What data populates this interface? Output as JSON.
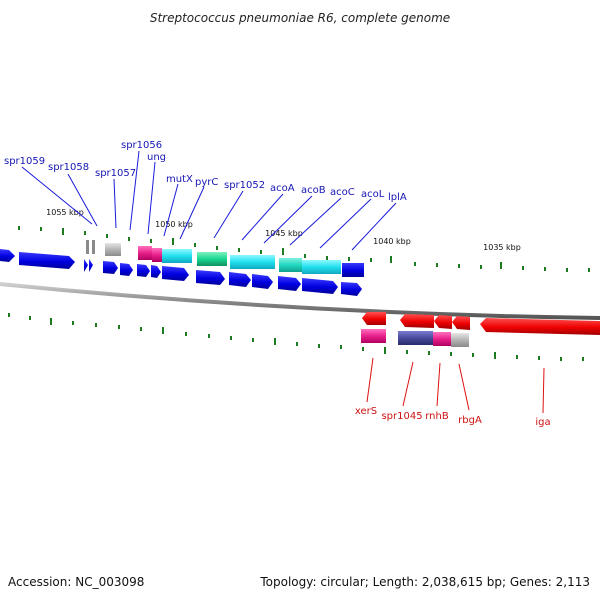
{
  "title": "Streptococcus pneumoniae R6, complete genome",
  "footer": {
    "accession": "Accession: NC_003098",
    "summary": "Topology: circular; Length: 2,038,615 bp; Genes: 2,113"
  },
  "colors": {
    "forward_gene": "#1212e6",
    "reverse_gene": "#e81010",
    "backbone": "#8a8a8a",
    "tick": "#1e7a1e",
    "pseudo": "#9a9a9a",
    "magenta": "#e8208a",
    "cyan": "#20e0ee",
    "teal": "#20d8c0",
    "green": "#18d890",
    "indigo": "#4a4a9c"
  },
  "ruler_labels": [
    "1055 kbp",
    "1050 kbp",
    "1045 kbp",
    "1040 kbp",
    "1035 kbp"
  ],
  "forward_labels": [
    "spr1059",
    "spr1058",
    "spr1057",
    "spr1056",
    "ung",
    "mutX",
    "pyrC",
    "spr1052",
    "acoA",
    "acoB",
    "acoC",
    "acoL",
    "lplA"
  ],
  "reverse_labels": [
    "xerS",
    "spr1045",
    "rnhB",
    "rbgA",
    "iga"
  ]
}
